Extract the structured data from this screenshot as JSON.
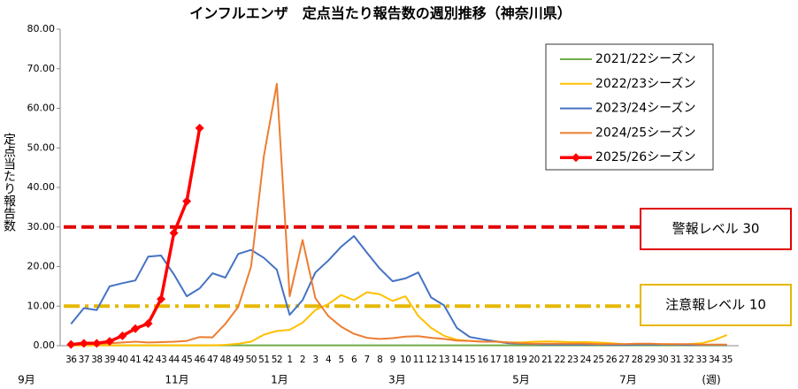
{
  "chart_data": {
    "type": "line",
    "title": "インフルエンザ　定点当たり報告数の週別推移（神奈川県）",
    "y_label": "定点当たり報告数",
    "categories": [
      "36",
      "37",
      "38",
      "39",
      "40",
      "41",
      "42",
      "43",
      "44",
      "45",
      "46",
      "47",
      "48",
      "49",
      "50",
      "51",
      "52",
      "1",
      "2",
      "3",
      "4",
      "5",
      "6",
      "7",
      "8",
      "9",
      "10",
      "11",
      "12",
      "13",
      "14",
      "15",
      "16",
      "17",
      "18",
      "19",
      "20",
      "21",
      "22",
      "23",
      "24",
      "25",
      "26",
      "27",
      "28",
      "29",
      "30",
      "31",
      "32",
      "33",
      "34",
      "35"
    ],
    "month_labels": [
      "9月",
      "11月",
      "1月",
      "3月",
      "5月",
      "7月"
    ],
    "x_unit": "(週)",
    "ylim": [
      0,
      80
    ],
    "yticks": [
      {
        "value": 0,
        "label": "0.00"
      },
      {
        "value": 10,
        "label": "10.00"
      },
      {
        "value": 20,
        "label": "20.00"
      },
      {
        "value": 30,
        "label": "30.00"
      },
      {
        "value": 40,
        "label": "40.00"
      },
      {
        "value": 50,
        "label": "50.00"
      },
      {
        "value": 60,
        "label": "60.00"
      },
      {
        "value": 70,
        "label": "70.00"
      },
      {
        "value": 80,
        "label": "80.00"
      }
    ],
    "grid": false,
    "legend": "top-right",
    "series": [
      {
        "name": "2021/22シーズン",
        "color": "#70ad47",
        "values": [
          0.1,
          0.1,
          0.1,
          0.1,
          0.1,
          0.1,
          0.1,
          0.1,
          0.1,
          0.1,
          0.1,
          0.1,
          0.1,
          0.1,
          0.1,
          0.1,
          0.1,
          0.1,
          0.1,
          0.1,
          0.1,
          0.1,
          0.1,
          0.1,
          0.1,
          0.1,
          0.1,
          0.1,
          0.1,
          0.1,
          0.1,
          0.1,
          0.1,
          0.1,
          0.1,
          0.1,
          0.1,
          0.1,
          0.1,
          0.1,
          0.1,
          0.1,
          0.1,
          0.1,
          0.1,
          0.1,
          0.1,
          0.1,
          0.1,
          0.1,
          0.1,
          0.1
        ]
      },
      {
        "name": "2022/23シーズン",
        "color": "#ffc000",
        "values": [
          0.1,
          0.1,
          0.1,
          0.1,
          0.1,
          0.1,
          0.1,
          0.1,
          0.1,
          0.1,
          0.1,
          0.1,
          0.2,
          0.5,
          1.0,
          2.8,
          3.7,
          4.0,
          5.8,
          9.0,
          10.5,
          12.8,
          11.5,
          13.5,
          13.0,
          11.3,
          12.5,
          7.5,
          4.5,
          2.5,
          1.5,
          1.2,
          1.0,
          1.1,
          0.8,
          0.8,
          1.0,
          1.1,
          1.0,
          0.9,
          0.9,
          0.8,
          0.6,
          0.4,
          0.3,
          0.3,
          0.4,
          0.3,
          0.4,
          0.6,
          1.4,
          2.7
        ]
      },
      {
        "name": "2023/24シーズン",
        "color": "#4472c4",
        "values": [
          5.5,
          9.5,
          9.0,
          15.0,
          15.8,
          16.5,
          22.5,
          22.8,
          18.0,
          12.5,
          14.5,
          18.3,
          17.2,
          23.2,
          24.2,
          22.2,
          19.2,
          7.8,
          11.5,
          18.5,
          21.5,
          25.0,
          27.7,
          23.5,
          19.5,
          16.3,
          17.0,
          18.5,
          12.2,
          10.2,
          4.5,
          2.2,
          1.6,
          1.1,
          0.6,
          0.5,
          0.4,
          0.3,
          0.3,
          0.3,
          0.3,
          0.3,
          0.2,
          0.2,
          0.3,
          0.3,
          0.3,
          0.3,
          0.2,
          0.2,
          0.2,
          0.2
        ]
      },
      {
        "name": "2024/25シーズン",
        "color": "#ed7d31",
        "values": [
          0.3,
          0.4,
          0.5,
          0.6,
          0.8,
          1.0,
          0.8,
          0.9,
          1.0,
          1.2,
          2.2,
          2.1,
          5.5,
          9.8,
          20.0,
          48.0,
          66.2,
          12.5,
          26.7,
          12.0,
          7.5,
          4.8,
          3.0,
          2.0,
          1.7,
          1.9,
          2.3,
          2.4,
          2.0,
          1.7,
          1.3,
          1.2,
          1.0,
          1.0,
          0.8,
          0.6,
          0.5,
          0.5,
          0.5,
          0.5,
          0.5,
          0.4,
          0.4,
          0.4,
          0.5,
          0.5,
          0.4,
          0.4,
          0.4,
          0.3,
          0.3,
          0.3
        ]
      },
      {
        "name": "2025/26シーズン",
        "color": "#ff0000",
        "marker": "diamond",
        "values": [
          0.3,
          0.6,
          0.6,
          1.1,
          2.5,
          4.3,
          5.6,
          11.8,
          28.5,
          36.5,
          55.0,
          null,
          null,
          null,
          null,
          null,
          null,
          null,
          null,
          null,
          null,
          null,
          null,
          null,
          null,
          null,
          null,
          null,
          null,
          null,
          null,
          null,
          null,
          null,
          null,
          null,
          null,
          null,
          null,
          null,
          null,
          null,
          null,
          null,
          null,
          null,
          null,
          null,
          null,
          null,
          null,
          null
        ]
      }
    ],
    "reference_lines": [
      {
        "label": "警報レベル 30",
        "value": 30,
        "color": "#e00000",
        "style": "dashed"
      },
      {
        "label": "注意報レベル 10",
        "value": 10,
        "color": "#e6b800",
        "style": "dashdot"
      }
    ]
  }
}
